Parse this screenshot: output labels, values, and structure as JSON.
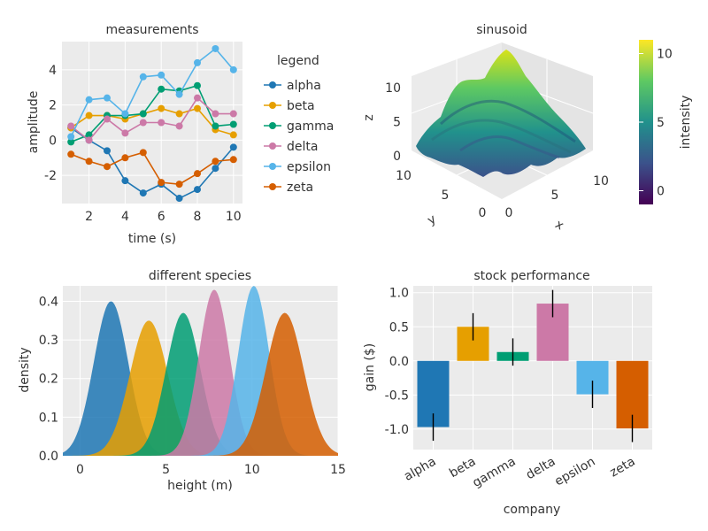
{
  "colors": {
    "alpha": "#1f77b4",
    "beta": "#e69f00",
    "gamma": "#009e73",
    "delta": "#cc79a7",
    "epsilon": "#56b4e9",
    "zeta": "#d55e00",
    "panel_bg": "#ebebeb",
    "grid": "#ffffff"
  },
  "chart_data": [
    {
      "type": "line",
      "title": "measurements",
      "xlabel": "time (s)",
      "ylabel": "amplitude",
      "legend_title": "legend",
      "legend_position": "right",
      "xlim": [
        0.5,
        10.5
      ],
      "ylim": [
        -3.6,
        5.6
      ],
      "x_ticks": [
        2,
        4,
        6,
        8,
        10
      ],
      "y_ticks": [
        -2,
        0,
        2,
        4
      ],
      "x_tick_labels": [
        "2",
        "4",
        "6",
        "8",
        "10"
      ],
      "y_tick_labels": [
        "-2",
        "0",
        "2",
        "4"
      ],
      "x": [
        1,
        2,
        3,
        4,
        5,
        6,
        7,
        8,
        9,
        10
      ],
      "series": [
        {
          "name": "alpha",
          "values": [
            0.7,
            0.0,
            -0.6,
            -2.3,
            -3.0,
            -2.5,
            -3.3,
            -2.8,
            -1.6,
            -0.4
          ]
        },
        {
          "name": "beta",
          "values": [
            0.7,
            1.4,
            1.4,
            1.2,
            1.5,
            1.8,
            1.5,
            1.8,
            0.6,
            0.3
          ]
        },
        {
          "name": "gamma",
          "values": [
            -0.1,
            0.3,
            1.4,
            1.4,
            1.5,
            2.9,
            2.8,
            3.1,
            0.8,
            0.9
          ]
        },
        {
          "name": "delta",
          "values": [
            0.8,
            0.0,
            1.2,
            0.4,
            1.0,
            1.0,
            0.8,
            2.4,
            1.5,
            1.5
          ]
        },
        {
          "name": "epsilon",
          "values": [
            0.2,
            2.3,
            2.4,
            1.5,
            3.6,
            3.7,
            2.6,
            4.4,
            5.2,
            4.0
          ]
        },
        {
          "name": "zeta",
          "values": [
            -0.8,
            -1.2,
            -1.5,
            -1.0,
            -0.7,
            -2.4,
            -2.5,
            -1.9,
            -1.2,
            -1.1
          ]
        }
      ]
    },
    {
      "type": "surface",
      "title": "sinusoid",
      "xlabel": "x",
      "ylabel": "y",
      "zlabel": "z",
      "xlim": [
        0,
        10
      ],
      "ylim": [
        0,
        10
      ],
      "zlim": [
        0,
        11
      ],
      "x_tick_labels": [
        "0",
        "5",
        "10"
      ],
      "y_tick_labels": [
        "0",
        "5",
        "10"
      ],
      "z_tick_labels": [
        "0",
        "5",
        "10"
      ],
      "x_ticks": [
        0,
        5,
        10
      ],
      "y_ticks": [
        0,
        5,
        10
      ],
      "z_ticks": [
        0,
        5,
        10
      ],
      "colorbar": {
        "label": "intensity",
        "range": [
          -1,
          11
        ],
        "ticks": [
          0,
          5,
          10
        ],
        "tick_labels": [
          "0",
          "5",
          "10"
        ],
        "stops": [
          "#440154",
          "#3b528b",
          "#21918c",
          "#5ec962",
          "#fde725"
        ]
      }
    },
    {
      "type": "area",
      "title": "different species",
      "xlabel": "height (m)",
      "ylabel": "density",
      "xlim": [
        -1,
        15
      ],
      "ylim": [
        0,
        0.44
      ],
      "x_ticks": [
        0,
        5,
        10,
        15
      ],
      "y_ticks": [
        0.0,
        0.1,
        0.2,
        0.3,
        0.4
      ],
      "x_tick_labels": [
        "0",
        "5",
        "10",
        "15"
      ],
      "y_tick_labels": [
        "0.0",
        "0.1",
        "0.2",
        "0.3",
        "0.4"
      ],
      "series": [
        {
          "name": "alpha",
          "mean": 1.8,
          "sd": 1.0,
          "peak": 0.4
        },
        {
          "name": "beta",
          "mean": 4.0,
          "sd": 1.1,
          "peak": 0.35
        },
        {
          "name": "gamma",
          "mean": 6.0,
          "sd": 1.0,
          "peak": 0.37
        },
        {
          "name": "delta",
          "mean": 7.8,
          "sd": 0.9,
          "peak": 0.43
        },
        {
          "name": "epsilon",
          "mean": 10.1,
          "sd": 0.9,
          "peak": 0.44
        },
        {
          "name": "zeta",
          "mean": 11.9,
          "sd": 1.1,
          "peak": 0.37
        }
      ]
    },
    {
      "type": "bar",
      "title": "stock performance",
      "xlabel": "company",
      "ylabel": "gain ($)",
      "ylim": [
        -1.3,
        1.1
      ],
      "y_ticks": [
        -1.0,
        -0.5,
        0.0,
        0.5,
        1.0
      ],
      "y_tick_labels": [
        "-1.0",
        "-0.5",
        "0.0",
        "0.5",
        "1.0"
      ],
      "categories": [
        "alpha",
        "beta",
        "gamma",
        "delta",
        "epsilon",
        "zeta"
      ],
      "values": [
        -0.97,
        0.5,
        0.13,
        0.84,
        -0.49,
        -0.99
      ],
      "errors": [
        0.2,
        0.2,
        0.2,
        0.2,
        0.2,
        0.2
      ]
    }
  ]
}
